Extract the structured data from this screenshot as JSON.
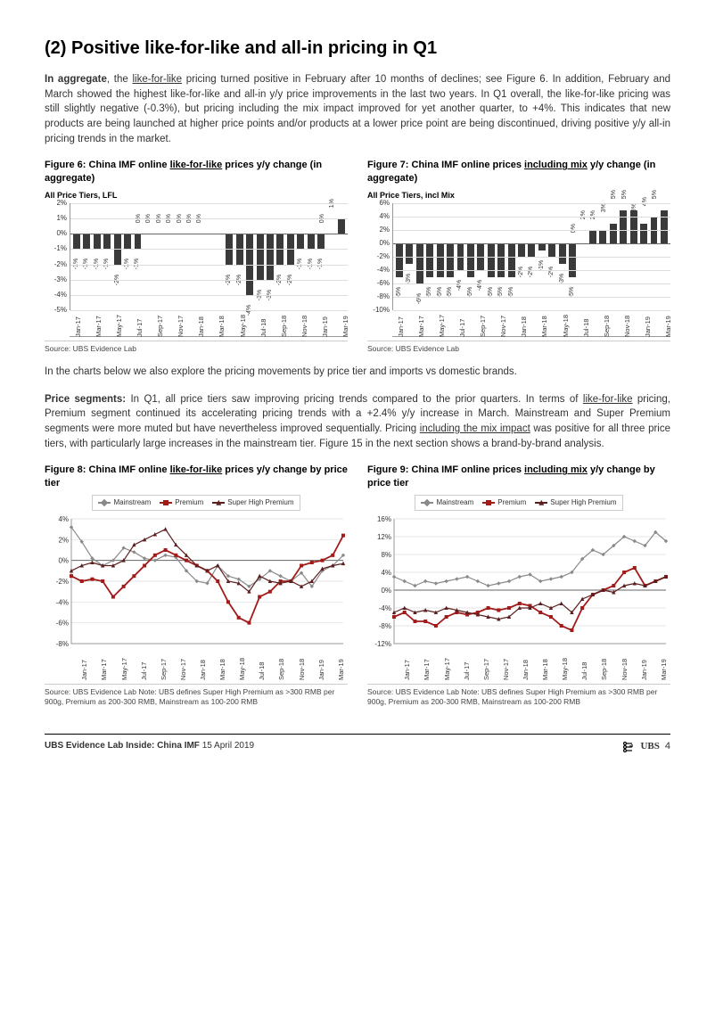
{
  "heading": "(2) Positive like-for-like and all-in pricing in Q1",
  "para1_pre": "In aggregate",
  "para1_mid1": ", the ",
  "para1_u1": "like-for-like",
  "para1_rest": " pricing turned positive in February after 10 months of declines; see Figure 6. In addition, February and March showed the highest like-for-like and all-in y/y price improvements in the last two years. In Q1 overall, the like-for-like pricing was still slightly negative (-0.3%), but pricing including the mix impact improved for yet another quarter, to +4%. This indicates that new products are being launched at higher price points and/or products at a lower price point are being discontinued, driving positive y/y all-in pricing trends in the market.",
  "fig6": {
    "title_pre": "Figure 6: China IMF online ",
    "title_u": "like-for-like",
    "title_post": " prices y/y change (in aggregate)",
    "subtitle": "All Price Tiers, LFL",
    "categories": [
      "Jan-17",
      "",
      "Mar-17",
      "",
      "May-17",
      "",
      "Jul-17",
      "",
      "Sep-17",
      "",
      "Nov-17",
      "",
      "Jan-18",
      "",
      "Mar-18",
      "",
      "May-18",
      "",
      "Jul-18",
      "",
      "Sep-18",
      "",
      "Nov-18",
      "",
      "Jan-19",
      "",
      "Mar-19"
    ],
    "values": [
      -1,
      -1,
      -1,
      -1,
      -2,
      -1,
      -1,
      0,
      0,
      0,
      0,
      0,
      0,
      0,
      0,
      -2,
      -2,
      -4,
      -3,
      -3,
      -2,
      -2,
      -1,
      -1,
      -1,
      0,
      1
    ],
    "value_labels": [
      "-1%",
      "-1%",
      "-1%",
      "-1%",
      "-2%",
      "-1%",
      "-1%",
      "0%",
      "0%",
      "0%",
      "0%",
      "0%",
      "0%",
      "0%",
      "",
      "-2%",
      "-2%",
      "-4%",
      "-3%",
      "-3%",
      "-2%",
      "-2%",
      "-1%",
      "-1%",
      "-1%",
      "0%",
      "1%"
    ],
    "ymin": -5,
    "ymax": 2,
    "yticks": [
      2,
      1,
      0,
      -1,
      -2,
      -3,
      -4,
      -5
    ],
    "ytick_labels": [
      "2%",
      "1%",
      "0%",
      "-1%",
      "-2%",
      "-3%",
      "-4%",
      "-5%"
    ],
    "bar_color": "#3a3a3a",
    "source": "Source: UBS Evidence Lab"
  },
  "fig7": {
    "title_pre": "Figure 7: China IMF online prices ",
    "title_u": "including mix",
    "title_post": " y/y change (in aggregate)",
    "subtitle": "All Price Tiers, incl Mix",
    "categories": [
      "Jan-17",
      "",
      "Mar-17",
      "",
      "May-17",
      "",
      "Jul-17",
      "",
      "Sep-17",
      "",
      "Nov-17",
      "",
      "Jan-18",
      "",
      "Mar-18",
      "",
      "May-18",
      "",
      "Jul-18",
      "",
      "Sep-18",
      "",
      "Nov-18",
      "",
      "Jan-19",
      "",
      "Mar-19"
    ],
    "values": [
      -5,
      -3,
      -6,
      -5,
      -5,
      -5,
      -4,
      -5,
      -4,
      -5,
      -5,
      -5,
      -2,
      -2,
      -1,
      -2,
      -3,
      -5,
      0,
      2,
      2,
      3,
      5,
      5,
      3,
      4,
      5
    ],
    "value_labels": [
      "-5%",
      "-3%",
      "-6%",
      "-5%",
      "-5%",
      "-5%",
      "-4%",
      "-5%",
      "-4%",
      "-5%",
      "-5%",
      "-5%",
      "-2%",
      "-2%",
      "-1%",
      "-2%",
      "-3%",
      "-5%",
      "0%",
      "2%",
      "2%",
      "3%",
      "5%",
      "5%",
      "3%",
      "4%",
      "5%"
    ],
    "ymin": -10,
    "ymax": 6,
    "yticks": [
      6,
      4,
      2,
      0,
      -2,
      -4,
      -6,
      -8,
      -10
    ],
    "ytick_labels": [
      "6%",
      "4%",
      "2%",
      "0%",
      "-2%",
      "-4%",
      "-6%",
      "-8%",
      "-10%"
    ],
    "bar_color": "#3a3a3a",
    "source": "Source:  UBS Evidence Lab"
  },
  "para2": "In the charts below we also explore the pricing movements by price tier and imports vs domestic brands.",
  "para3_pre": "Price segments:",
  "para3_mid1": " In Q1, all price tiers saw improving pricing trends compared to the prior quarters. In terms of ",
  "para3_u1": "like-for-like",
  "para3_mid2": " pricing, Premium segment continued its accelerating pricing trends with a +2.4% y/y increase in March. Mainstream and Super Premium segments were more muted but have nevertheless improved sequentially. Pricing ",
  "para3_u2": "including the mix impact",
  "para3_rest": " was positive for all three price tiers, with particularly large increases in the mainstream tier. Figure 15 in the next section shows a brand-by-brand analysis.",
  "fig8": {
    "title_pre": "Figure 8: China IMF online ",
    "title_u": "like-for-like",
    "title_post": " prices y/y change by price tier",
    "legend": [
      "Mainstream",
      "Premium",
      "Super High Premium"
    ],
    "colors": {
      "mainstream": "#8a8a8a",
      "premium": "#a11b1b",
      "super": "#5b1f1f"
    },
    "ymin": -8,
    "ymax": 4,
    "yticks": [
      4,
      2,
      0,
      -2,
      -4,
      -6,
      -8
    ],
    "ytick_labels": [
      "4%",
      "2%",
      "0%",
      "-2%",
      "-4%",
      "-6%",
      "-8%"
    ],
    "x_labels": [
      "Jan-17",
      "Mar-17",
      "May-17",
      "Jul-17",
      "Sep-17",
      "Nov-17",
      "Jan-18",
      "Mar-18",
      "May-18",
      "Jul-18",
      "Sep-18",
      "Nov-18",
      "Jan-19",
      "Mar-19"
    ],
    "series": {
      "mainstream": [
        3.2,
        1.8,
        0.2,
        -0.5,
        0.0,
        1.2,
        0.8,
        0.2,
        0.0,
        0.5,
        0.3,
        -1.0,
        -2.0,
        -2.2,
        -0.5,
        -1.5,
        -1.8,
        -2.5,
        -1.8,
        -1.0,
        -1.5,
        -2.0,
        -1.2,
        -2.5,
        -1.0,
        -0.5,
        0.5
      ],
      "premium": [
        -1.5,
        -2.0,
        -1.8,
        -2.0,
        -3.5,
        -2.5,
        -1.5,
        -0.5,
        0.5,
        1.0,
        0.5,
        0.0,
        -0.5,
        -1.0,
        -2.0,
        -4.0,
        -5.5,
        -6.0,
        -3.5,
        -3.0,
        -2.0,
        -2.0,
        -0.5,
        -0.2,
        0.0,
        0.5,
        2.4
      ],
      "super": [
        -1.0,
        -0.5,
        -0.2,
        -0.5,
        -0.5,
        0.0,
        1.5,
        2.0,
        2.5,
        3.0,
        1.5,
        0.5,
        -0.5,
        -1.0,
        -0.5,
        -2.0,
        -2.2,
        -3.0,
        -1.5,
        -2.0,
        -2.2,
        -2.0,
        -2.5,
        -2.0,
        -0.8,
        -0.5,
        -0.3
      ]
    },
    "source": "Source: UBS Evidence Lab  Note: UBS defines Super High Premium as >300 RMB per 900g, Premium as 200-300 RMB, Mainstream as 100-200 RMB"
  },
  "fig9": {
    "title_pre": "Figure 9: China IMF online prices ",
    "title_u": "including mix",
    "title_post": " y/y change by price tier",
    "legend": [
      "Mainstream",
      "Premium",
      "Super High Premium"
    ],
    "colors": {
      "mainstream": "#8a8a8a",
      "premium": "#a11b1b",
      "super": "#5b1f1f"
    },
    "ymin": -12,
    "ymax": 16,
    "yticks": [
      16,
      12,
      8,
      4,
      0,
      -4,
      -8,
      -12
    ],
    "ytick_labels": [
      "16%",
      "12%",
      "8%",
      "4%",
      "0%",
      "-4%",
      "-8%",
      "-12%"
    ],
    "x_labels": [
      "Jan-17",
      "Mar-17",
      "May-17",
      "Jul-17",
      "Sep-17",
      "Nov-17",
      "Jan-18",
      "Mar-18",
      "May-18",
      "Jul-18",
      "Sep-18",
      "Nov-18",
      "Jan-19",
      "Mar-19"
    ],
    "series": {
      "mainstream": [
        3.0,
        2.0,
        1.0,
        2.0,
        1.5,
        2.0,
        2.5,
        3.0,
        2.0,
        1.0,
        1.5,
        2.0,
        3.0,
        3.5,
        2.0,
        2.5,
        3.0,
        4.0,
        7.0,
        9.0,
        8.0,
        10.0,
        12.0,
        11.0,
        10.0,
        13.0,
        11.0
      ],
      "premium": [
        -6.0,
        -5.0,
        -7.0,
        -7.0,
        -8.0,
        -6.0,
        -5.0,
        -5.5,
        -5.0,
        -4.0,
        -4.5,
        -4.0,
        -3.0,
        -3.5,
        -5.0,
        -6.0,
        -8.0,
        -9.0,
        -4.0,
        -1.0,
        0.0,
        1.0,
        4.0,
        5.0,
        1.0,
        2.0,
        3.0
      ],
      "super": [
        -5.0,
        -4.0,
        -5.0,
        -4.5,
        -5.0,
        -4.0,
        -4.5,
        -5.0,
        -5.5,
        -6.0,
        -6.5,
        -6.0,
        -4.0,
        -4.0,
        -3.0,
        -4.0,
        -3.0,
        -5.0,
        -2.0,
        -1.0,
        0.0,
        -0.5,
        1.0,
        1.5,
        1.0,
        2.0,
        3.0
      ]
    },
    "source": "Source:  UBS Evidence Lab  Note: UBS defines Super High Premium as >300 RMB per 900g, Premium as 200-300 RMB, Mainstream as 100-200 RMB"
  },
  "footer": {
    "left_bold": "UBS Evidence Lab Inside: China IMF",
    "left_rest": "  15 April 2019",
    "brand": "UBS",
    "page": "4"
  }
}
